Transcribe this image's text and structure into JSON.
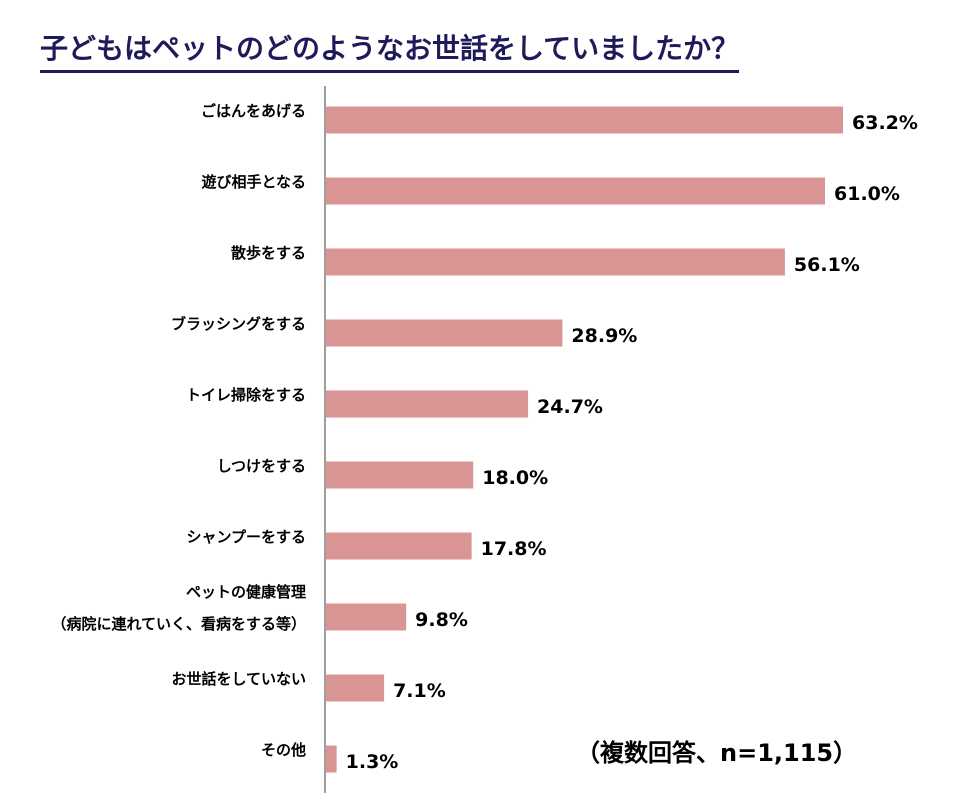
{
  "title": "子どもはペットのどのようなお世話をしていましたか？",
  "note": "（複数回答、n=1,115）",
  "colors": {
    "bar": "#d99594",
    "axis": "#7f7f7f",
    "title": "#1f1a5a"
  },
  "chart_data": {
    "type": "bar",
    "orientation": "horizontal",
    "title": "子どもはペットのどのようなお世話をしていましたか？",
    "categories": [
      [
        "ごはんをあげる"
      ],
      [
        "遊び相手となる"
      ],
      [
        "散歩をする"
      ],
      [
        "ブラッシングをする"
      ],
      [
        "トイレ掃除をする"
      ],
      [
        "しつけをする"
      ],
      [
        "シャンプーをする"
      ],
      [
        "ペットの健康管理",
        "（病院に連れていく、看病をする等）"
      ],
      [
        "お世話をしていない"
      ],
      [
        "その他"
      ]
    ],
    "values": [
      63.2,
      61.0,
      56.1,
      28.9,
      24.7,
      18.0,
      17.8,
      9.8,
      7.1,
      1.3
    ],
    "value_labels": [
      "63.2%",
      "61.0%",
      "56.1%",
      "28.9%",
      "24.7%",
      "18.0%",
      "17.8%",
      "9.8%",
      "7.1%",
      "1.3%"
    ],
    "xlim": [
      0,
      63.2
    ],
    "xlabel": "",
    "ylabel": "",
    "grid": false,
    "legend": "none"
  }
}
